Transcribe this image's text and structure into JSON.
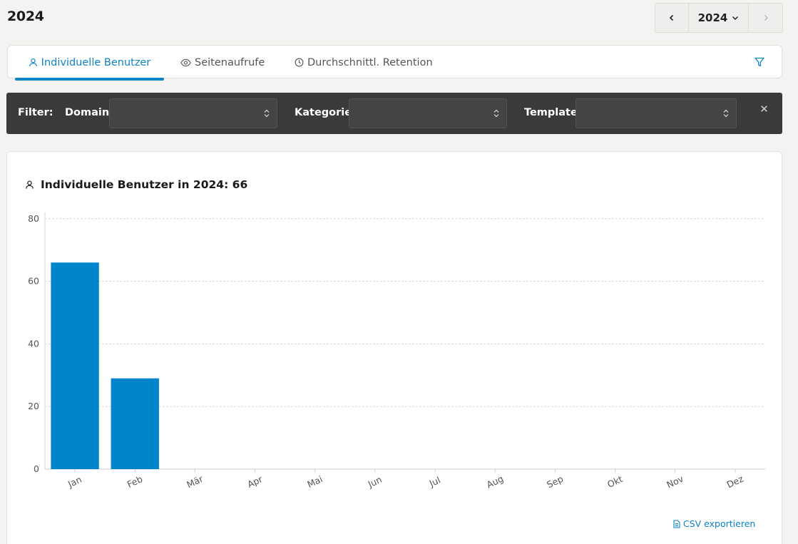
{
  "header": {
    "title": "2024"
  },
  "year_nav": {
    "year": "2024"
  },
  "tabs": [
    {
      "label": "Individuelle Benutzer",
      "icon": "user-icon",
      "active": true
    },
    {
      "label": "Seitenaufrufe",
      "icon": "eye-icon",
      "active": false
    },
    {
      "label": "Durchschnittl. Retention",
      "icon": "clock-icon",
      "active": false
    }
  ],
  "filter": {
    "title": "Filter:",
    "domain_label": "Domain",
    "category_label": "Kategorie",
    "template_label": "Template",
    "domain_value": "",
    "category_value": "",
    "template_value": ""
  },
  "card": {
    "title": "Individuelle Benutzer in 2024: 66",
    "csv_label": "CSV exportieren"
  },
  "colors": {
    "accent": "#0a84c8",
    "bar": "#0084cc",
    "filter_bg": "#3b3a39"
  },
  "chart_data": {
    "type": "bar",
    "categories": [
      "Jan",
      "Feb",
      "Mär",
      "Apr",
      "Mai",
      "Jun",
      "Jul",
      "Aug",
      "Sep",
      "Okt",
      "Nov",
      "Dez"
    ],
    "values": [
      66,
      29,
      0,
      0,
      0,
      0,
      0,
      0,
      0,
      0,
      0,
      0
    ],
    "yticks": [
      0,
      20,
      40,
      60,
      80
    ],
    "ylim": [
      0,
      82
    ],
    "grid": true
  }
}
